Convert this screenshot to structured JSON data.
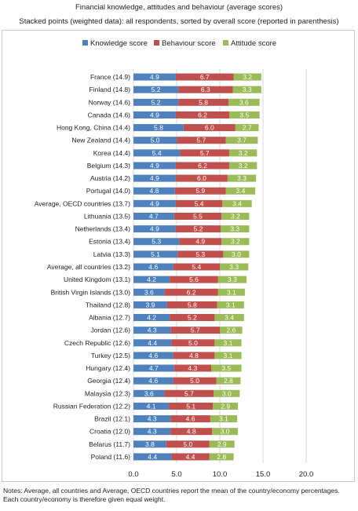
{
  "title": "Financial knowledge, attitudes and behaviour (average scores)",
  "subtitle": "Stacked points (weighted data): all respondents, sorted by overall score (reported in parenthesis)",
  "notes": "Notes: Average, all countries and Average, OECD countries report the mean of the country/economy percentages. Each country/economy is therefore given equal weight.",
  "colors": {
    "knowledge": "#4f81bd",
    "behaviour": "#c0504d",
    "attitude": "#9bbb59",
    "grid": "#d9d9d9"
  },
  "chart_data": {
    "type": "bar",
    "orientation": "horizontal",
    "stacked": true,
    "legend_position": "top",
    "grid": true,
    "xlim": [
      0,
      20
    ],
    "xticks": [
      "0.0",
      "5.0",
      "10.0",
      "15.0",
      "20.0"
    ],
    "categories": [
      "France (14.9)",
      "Finland (14.8)",
      "Norway (14.6)",
      "Canada (14.6)",
      "Hong Kong, China (14.4)",
      "New Zealand (14.4)",
      "Korea (14.4)",
      "Belgium (14.3)",
      "Austria (14.2)",
      "Portugal (14.0)",
      "Average, OECD countries (13.7)",
      "Lithuania (13.5)",
      "Netherlands (13.4)",
      "Estonia (13.4)",
      "Latvia (13.3)",
      "Average, all countries (13.2)",
      "United Kingdom (13.1)",
      "British Virgin Islands (13.0)",
      "Thailand (12.8)",
      "Albania (12.7)",
      "Jordan (12.6)",
      "Czech Republic (12.6)",
      "Turkey (12.5)",
      "Hungary (12.4)",
      "Georgia (12.4)",
      "Malaysia (12.3)",
      "Russian Federation (12.2)",
      "Brazil (12.1)",
      "Croatia (12.0)",
      "Belarus (11.7)",
      "Poland (11.6)"
    ],
    "series": [
      {
        "name": "Knowledge score",
        "color": "#4f81bd",
        "values": [
          4.9,
          5.2,
          5.2,
          4.9,
          5.8,
          5.0,
          5.4,
          4.9,
          4.9,
          4.8,
          4.9,
          4.7,
          4.9,
          5.3,
          5.1,
          4.6,
          4.2,
          3.6,
          3.9,
          4.2,
          4.3,
          4.4,
          4.6,
          4.7,
          4.6,
          3.6,
          4.1,
          4.3,
          4.3,
          3.8,
          4.4
        ],
        "labels": [
          "4.9",
          "5.2",
          "5.2",
          "4.9",
          "5.8",
          "5.0",
          "5.4",
          "4.9",
          "4.9",
          "4.8",
          "4.9",
          "4.7",
          "4.9",
          "5.3",
          "5.1",
          "4.6",
          "4.2",
          "3.6",
          "3.9",
          "4.2",
          "4.3",
          "4.4",
          "4.6",
          "4.7",
          "4.6",
          "3.6",
          "4.1",
          "4.3",
          "4.3",
          "3.8",
          "4.4"
        ]
      },
      {
        "name": "Behaviour score",
        "color": "#c0504d",
        "values": [
          6.7,
          6.3,
          5.8,
          6.2,
          6.0,
          5.7,
          5.7,
          6.2,
          6.0,
          5.9,
          5.4,
          5.5,
          5.2,
          4.9,
          5.3,
          5.4,
          5.6,
          6.2,
          5.8,
          5.2,
          5.7,
          5.0,
          4.8,
          4.3,
          5.0,
          5.7,
          5.1,
          4.6,
          4.8,
          5.0,
          4.4
        ],
        "labels": [
          "6.7",
          "6.3",
          "5.8",
          "6.2",
          "6.0",
          "5.7",
          "5.7",
          "6.2",
          "6.0",
          "5.9",
          "5.4",
          "5.5",
          "5.2",
          "4.9",
          "5.3",
          "5.4",
          "5.6",
          "6.2",
          "5.8",
          "5.2",
          "5.7",
          "5.0",
          "4.8",
          "4.3",
          "5.0",
          "5.7",
          "5.1",
          "4.6",
          "4.8",
          "5.0",
          "4.4"
        ]
      },
      {
        "name": "Attitude score",
        "color": "#9bbb59",
        "values": [
          3.2,
          3.3,
          3.6,
          3.5,
          2.7,
          3.7,
          3.2,
          3.2,
          3.3,
          3.4,
          3.4,
          3.2,
          3.3,
          3.2,
          3.0,
          3.3,
          3.3,
          3.1,
          3.1,
          3.4,
          2.6,
          3.1,
          3.1,
          3.5,
          2.8,
          3.0,
          2.9,
          3.1,
          3.0,
          2.9,
          2.8
        ],
        "labels": [
          "3.2",
          "3.3",
          "3.6",
          "3.5",
          "2.7",
          "3.7",
          "3.2",
          "3.2",
          "3.3",
          "3.4",
          "3.4",
          "3.2",
          "3.3",
          "3.2",
          "3.0",
          "3.3",
          "3.3",
          "3.1",
          "3.1",
          "3.4",
          "2.6",
          "3.1",
          "3.1",
          "3.5",
          "2.8",
          "3.0",
          "2.9",
          "3.1",
          "3.0",
          "2.9",
          "2.8"
        ]
      }
    ]
  }
}
